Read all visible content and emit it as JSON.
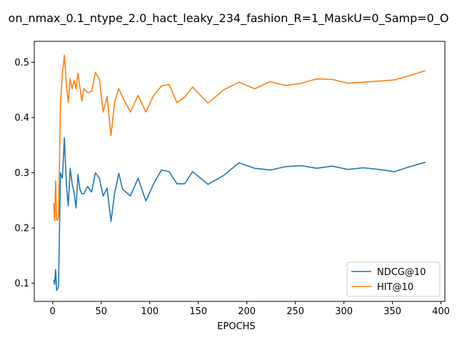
{
  "chart_data": {
    "type": "line",
    "title": "on_nmax_0.1_ntype_2.0_hact_leaky_234_fashion_R=1_MaskU=0_Samp=0_O",
    "xlabel": "EPOCHS",
    "ylabel": "",
    "xlim": [
      -19,
      404
    ],
    "ylim": [
      0.067,
      0.538
    ],
    "xticks": [
      0,
      50,
      100,
      150,
      200,
      250,
      300,
      350,
      400
    ],
    "yticks": [
      0.1,
      0.2,
      0.3,
      0.4,
      0.5
    ],
    "ytick_labels": [
      "0.1",
      "0.2",
      "0.3",
      "0.4",
      "0.5"
    ],
    "legend_position": "lower-right",
    "series": [
      {
        "name": "NDCG@10",
        "color": "#1f77b4",
        "x": [
          1,
          2,
          3,
          4,
          5,
          6,
          8,
          10,
          12,
          14,
          16,
          18,
          20,
          22,
          24,
          26,
          28,
          30,
          32,
          36,
          40,
          44,
          48,
          52,
          56,
          60,
          64,
          68,
          72,
          80,
          88,
          96,
          104,
          112,
          120,
          128,
          136,
          144,
          160,
          176,
          192,
          208,
          224,
          240,
          256,
          272,
          288,
          304,
          320,
          336,
          352,
          368,
          384
        ],
        "y": [
          0.106,
          0.098,
          0.125,
          0.087,
          0.09,
          0.094,
          0.3,
          0.29,
          0.363,
          0.28,
          0.24,
          0.308,
          0.28,
          0.265,
          0.236,
          0.297,
          0.27,
          0.262,
          0.262,
          0.275,
          0.265,
          0.3,
          0.29,
          0.258,
          0.272,
          0.212,
          0.265,
          0.299,
          0.27,
          0.258,
          0.29,
          0.249,
          0.28,
          0.305,
          0.302,
          0.28,
          0.28,
          0.302,
          0.279,
          0.295,
          0.318,
          0.308,
          0.305,
          0.311,
          0.313,
          0.308,
          0.312,
          0.306,
          0.309,
          0.306,
          0.302,
          0.311,
          0.319
        ]
      },
      {
        "name": "HIT@10",
        "color": "#ff7f0e",
        "x": [
          1,
          2,
          3,
          4,
          5,
          6,
          8,
          10,
          12,
          14,
          16,
          18,
          20,
          22,
          24,
          26,
          28,
          30,
          32,
          36,
          40,
          44,
          48,
          52,
          56,
          60,
          64,
          68,
          72,
          80,
          88,
          96,
          104,
          112,
          120,
          128,
          136,
          144,
          160,
          176,
          192,
          208,
          224,
          240,
          256,
          272,
          288,
          304,
          320,
          336,
          352,
          368,
          384
        ],
        "y": [
          0.245,
          0.213,
          0.285,
          0.215,
          0.214,
          0.22,
          0.425,
          0.48,
          0.513,
          0.46,
          0.427,
          0.47,
          0.452,
          0.467,
          0.452,
          0.48,
          0.455,
          0.43,
          0.452,
          0.445,
          0.447,
          0.482,
          0.47,
          0.41,
          0.438,
          0.367,
          0.43,
          0.452,
          0.437,
          0.41,
          0.44,
          0.41,
          0.44,
          0.457,
          0.46,
          0.427,
          0.437,
          0.455,
          0.426,
          0.45,
          0.464,
          0.452,
          0.465,
          0.458,
          0.462,
          0.47,
          0.469,
          0.462,
          0.464,
          0.466,
          0.468,
          0.476,
          0.485
        ]
      }
    ]
  }
}
